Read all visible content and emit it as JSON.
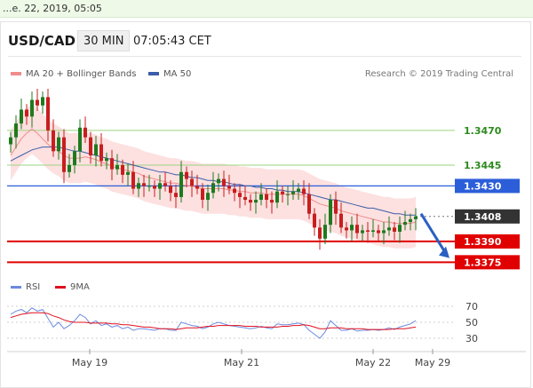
{
  "topbar": {
    "text": "...e. 22, 2019, 05:05"
  },
  "header": {
    "pair": "USD/CAD",
    "timeframe": "30 MIN",
    "time": "07:05:43 CET"
  },
  "legend": {
    "ma20": "MA 20 + Bollinger Bands",
    "ma20_color": "#f08c8c",
    "ma50": "MA 50",
    "ma50_color": "#3a5da8",
    "research": "Research © 2019 Trading Central"
  },
  "rsi_legend": {
    "rsi": "RSI",
    "rsi_color": "#6b8ae0",
    "ma9": "9MA",
    "ma9_color": "#e0101f"
  },
  "colors": {
    "up": "#1e7a1e",
    "down": "#c81e1e",
    "support": "#e00000",
    "resistance": "#9bd47f",
    "pivot": "#2b5ed8",
    "price": "#333333"
  },
  "chart_data": [
    {
      "type": "candlestick",
      "x_labels": [
        "May 19",
        "May 21",
        "May 22",
        "May 29"
      ],
      "ylim": [
        1.3365,
        1.35
      ],
      "levels": [
        {
          "label": "1.3470",
          "value": 1.347,
          "kind": "resistance"
        },
        {
          "label": "1.3445",
          "value": 1.3445,
          "kind": "resistance"
        },
        {
          "label": "1.3430",
          "value": 1.343,
          "kind": "pivot"
        },
        {
          "label": "1.3408",
          "value": 1.3408,
          "kind": "price"
        },
        {
          "label": "1.3390",
          "value": 1.339,
          "kind": "support"
        },
        {
          "label": "1.3375",
          "value": 1.3375,
          "kind": "support"
        }
      ],
      "close": [
        1.3465,
        1.3475,
        1.3485,
        1.348,
        1.3492,
        1.3488,
        1.3494,
        1.347,
        1.3455,
        1.3465,
        1.344,
        1.3445,
        1.3455,
        1.3472,
        1.3465,
        1.3452,
        1.346,
        1.3448,
        1.345,
        1.3442,
        1.3445,
        1.3438,
        1.344,
        1.3428,
        1.3432,
        1.343,
        1.343,
        1.3428,
        1.3432,
        1.343,
        1.3425,
        1.3422,
        1.344,
        1.3435,
        1.343,
        1.3428,
        1.342,
        1.3425,
        1.3432,
        1.3435,
        1.343,
        1.3428,
        1.3425,
        1.3422,
        1.342,
        1.3418,
        1.342,
        1.3424,
        1.342,
        1.3418,
        1.3426,
        1.3424,
        1.3424,
        1.3426,
        1.3428,
        1.3424,
        1.341,
        1.34,
        1.3392,
        1.3402,
        1.342,
        1.341,
        1.34,
        1.3398,
        1.3402,
        1.3396,
        1.3398,
        1.3397,
        1.3398,
        1.3396,
        1.3398,
        1.34,
        1.3397,
        1.3402,
        1.3404,
        1.3406,
        1.3408
      ],
      "ma20": [
        1.3452,
        1.3458,
        1.3464,
        1.3468,
        1.3471,
        1.3468,
        1.3464,
        1.346,
        1.3457,
        1.3455,
        1.3452,
        1.345,
        1.345,
        1.345,
        1.3451,
        1.345,
        1.3449,
        1.3447,
        1.3446,
        1.3444,
        1.3443,
        1.3442,
        1.3441,
        1.344,
        1.3439,
        1.3437,
        1.3436,
        1.3435,
        1.3434,
        1.3433,
        1.3432,
        1.3432,
        1.3431,
        1.343,
        1.343,
        1.3429,
        1.3428,
        1.3428,
        1.3428,
        1.3428,
        1.3428,
        1.3427,
        1.3427,
        1.3426,
        1.3426,
        1.3425,
        1.3425,
        1.3425,
        1.3424,
        1.3424,
        1.3424,
        1.3424,
        1.3424,
        1.3424,
        1.3424,
        1.3423,
        1.3421,
        1.3419,
        1.3417,
        1.3416,
        1.3415,
        1.3414,
        1.3412,
        1.3411,
        1.341,
        1.3409,
        1.3408,
        1.3407,
        1.3406,
        1.3405,
        1.3404,
        1.3404,
        1.3403,
        1.3403,
        1.3403,
        1.3403,
        1.3404
      ],
      "ma50": [
        1.3448,
        1.345,
        1.3452,
        1.3454,
        1.3456,
        1.3457,
        1.3458,
        1.3458,
        1.3458,
        1.3458,
        1.3457,
        1.3456,
        1.3455,
        1.3455,
        1.3454,
        1.3453,
        1.3452,
        1.3451,
        1.345,
        1.3449,
        1.3448,
        1.3447,
        1.3446,
        1.3445,
        1.3444,
        1.3443,
        1.3442,
        1.3441,
        1.344,
        1.344,
        1.3439,
        1.3438,
        1.3438,
        1.3437,
        1.3436,
        1.3436,
        1.3435,
        1.3434,
        1.3434,
        1.3433,
        1.3433,
        1.3432,
        1.3431,
        1.3431,
        1.343,
        1.343,
        1.3429,
        1.3429,
        1.3428,
        1.3428,
        1.3427,
        1.3427,
        1.3426,
        1.3426,
        1.3426,
        1.3425,
        1.3424,
        1.3423,
        1.3422,
        1.3421,
        1.342,
        1.342,
        1.3419,
        1.3418,
        1.3417,
        1.3416,
        1.3415,
        1.3414,
        1.3414,
        1.3413,
        1.3412,
        1.3411,
        1.341,
        1.341,
        1.3409,
        1.3409,
        1.3409
      ],
      "bb_width": 0.0018
    },
    {
      "type": "line",
      "name": "RSI",
      "ylim": [
        20,
        80
      ],
      "y_ticks": [
        "70",
        "50",
        "30"
      ],
      "rsi": [
        60,
        64,
        66,
        62,
        68,
        64,
        66,
        55,
        44,
        50,
        42,
        46,
        52,
        60,
        56,
        48,
        52,
        46,
        48,
        44,
        46,
        42,
        44,
        40,
        42,
        42,
        41,
        40,
        42,
        42,
        40,
        40,
        50,
        48,
        46,
        45,
        42,
        44,
        48,
        50,
        48,
        46,
        45,
        44,
        43,
        42,
        43,
        45,
        43,
        42,
        48,
        47,
        47,
        48,
        49,
        47,
        40,
        35,
        30,
        38,
        52,
        46,
        40,
        40,
        42,
        39,
        40,
        40,
        41,
        40,
        41,
        43,
        41,
        44,
        46,
        48,
        52
      ],
      "ma9": [
        56,
        58,
        60,
        61,
        62,
        62,
        62,
        61,
        58,
        56,
        53,
        51,
        50,
        50,
        50,
        49,
        49,
        49,
        49,
        48,
        48,
        47,
        47,
        46,
        45,
        44,
        44,
        43,
        42,
        42,
        42,
        41,
        42,
        43,
        43,
        43,
        44,
        45,
        45,
        46,
        46,
        46,
        46,
        46,
        45,
        45,
        45,
        44,
        44,
        44,
        44,
        45,
        45,
        46,
        46,
        47,
        46,
        44,
        42,
        42,
        43,
        43,
        43,
        42,
        42,
        42,
        42,
        41,
        41,
        41,
        41,
        41,
        42,
        42,
        42,
        43,
        44
      ]
    }
  ]
}
